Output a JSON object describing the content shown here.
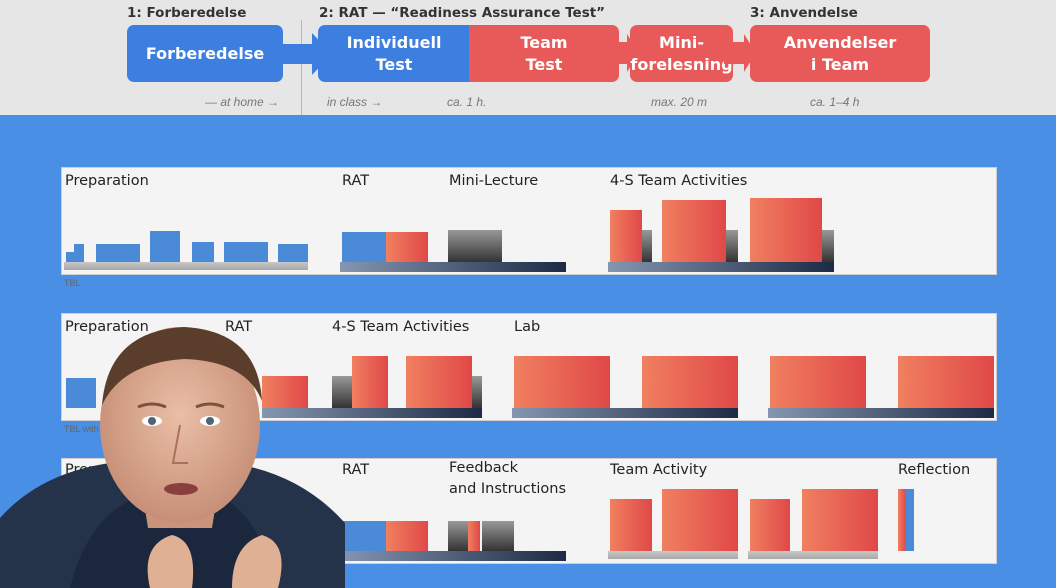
{
  "header": {
    "phases": [
      "1: Forberedelse",
      "2: RAT — “Readiness Assurance Test”",
      "3: Anvendelse"
    ],
    "boxes": [
      {
        "text": "Forberedelse"
      },
      {
        "line1": "Individuell",
        "line2": "Test"
      },
      {
        "line1": "Team",
        "line2": "Test"
      },
      {
        "line1": "Mini-",
        "line2": "forelesning"
      },
      {
        "line1": "Anvendelser",
        "line2": "i Team"
      }
    ],
    "notes": {
      "home": "— at home →",
      "class": "in class →",
      "hour": "ca. 1 h.",
      "max": "max. 20 m",
      "range": "ca. 1–4 h"
    }
  },
  "rows": [
    {
      "labels": [
        "Preparation",
        "RAT",
        "Mini-Lecture",
        "4-S Team Activities"
      ],
      "note": "TBL"
    },
    {
      "labels": [
        "Preparation",
        "RAT",
        "4-S Team Activities",
        "Lab"
      ],
      "note": "TBL with Lab"
    },
    {
      "labels": [
        "Preparation",
        "RAT",
        "Feedback",
        "and Instructions",
        "Team Activity",
        "Reflection"
      ]
    }
  ],
  "colors": {
    "blue": "#3d7fe0",
    "red": "#e85a5a",
    "background": "#4a8fe6"
  }
}
